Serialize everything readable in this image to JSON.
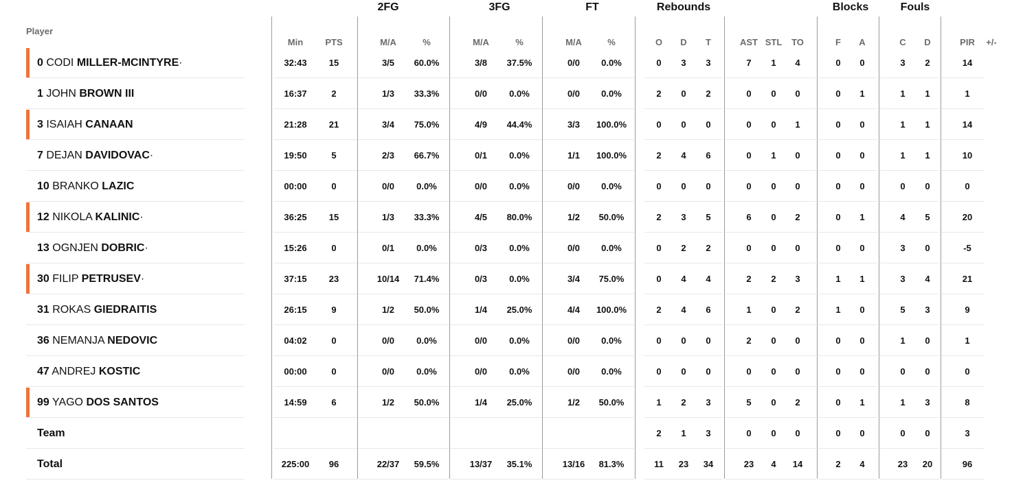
{
  "header": {
    "player": "Player",
    "groups": [
      "2FG",
      "3FG",
      "FT",
      "Rebounds",
      "Blocks",
      "Fouls"
    ],
    "columns": [
      "Min",
      "PTS",
      "M/A",
      "%",
      "M/A",
      "%",
      "M/A",
      "%",
      "O",
      "D",
      "T",
      "AST",
      "STL",
      "TO",
      "F",
      "A",
      "C",
      "D",
      "PIR",
      "+/-"
    ]
  },
  "players": [
    {
      "num": "0",
      "first": "CODI",
      "last": "MILLER-MCINTYRE",
      "dot": "·",
      "starter": true,
      "stats": [
        "32:43",
        "15",
        "3/5",
        "60.0%",
        "3/8",
        "37.5%",
        "0/0",
        "0.0%",
        "0",
        "3",
        "3",
        "7",
        "1",
        "4",
        "0",
        "0",
        "3",
        "2",
        "14",
        ""
      ]
    },
    {
      "num": "1",
      "first": "JOHN",
      "last": "BROWN III",
      "dot": "",
      "starter": false,
      "stats": [
        "16:37",
        "2",
        "1/3",
        "33.3%",
        "0/0",
        "0.0%",
        "0/0",
        "0.0%",
        "2",
        "0",
        "2",
        "0",
        "0",
        "0",
        "0",
        "1",
        "1",
        "1",
        "1",
        ""
      ]
    },
    {
      "num": "3",
      "first": "ISAIAH",
      "last": "CANAAN",
      "dot": "",
      "starter": true,
      "stats": [
        "21:28",
        "21",
        "3/4",
        "75.0%",
        "4/9",
        "44.4%",
        "3/3",
        "100.0%",
        "0",
        "0",
        "0",
        "0",
        "0",
        "1",
        "0",
        "0",
        "1",
        "1",
        "14",
        ""
      ]
    },
    {
      "num": "7",
      "first": "DEJAN",
      "last": "DAVIDOVAC",
      "dot": "·",
      "starter": false,
      "stats": [
        "19:50",
        "5",
        "2/3",
        "66.7%",
        "0/1",
        "0.0%",
        "1/1",
        "100.0%",
        "2",
        "4",
        "6",
        "0",
        "1",
        "0",
        "0",
        "0",
        "1",
        "1",
        "10",
        ""
      ]
    },
    {
      "num": "10",
      "first": "BRANKO",
      "last": "LAZIC",
      "dot": "",
      "starter": false,
      "stats": [
        "00:00",
        "0",
        "0/0",
        "0.0%",
        "0/0",
        "0.0%",
        "0/0",
        "0.0%",
        "0",
        "0",
        "0",
        "0",
        "0",
        "0",
        "0",
        "0",
        "0",
        "0",
        "0",
        ""
      ]
    },
    {
      "num": "12",
      "first": "NIKOLA",
      "last": "KALINIC",
      "dot": "·",
      "starter": true,
      "stats": [
        "36:25",
        "15",
        "1/3",
        "33.3%",
        "4/5",
        "80.0%",
        "1/2",
        "50.0%",
        "2",
        "3",
        "5",
        "6",
        "0",
        "2",
        "0",
        "1",
        "4",
        "5",
        "20",
        ""
      ]
    },
    {
      "num": "13",
      "first": "OGNJEN",
      "last": "DOBRIC",
      "dot": "·",
      "starter": false,
      "stats": [
        "15:26",
        "0",
        "0/1",
        "0.0%",
        "0/3",
        "0.0%",
        "0/0",
        "0.0%",
        "0",
        "2",
        "2",
        "0",
        "0",
        "0",
        "0",
        "0",
        "3",
        "0",
        "-5",
        ""
      ]
    },
    {
      "num": "30",
      "first": "FILIP",
      "last": "PETRUSEV",
      "dot": "·",
      "starter": true,
      "stats": [
        "37:15",
        "23",
        "10/14",
        "71.4%",
        "0/3",
        "0.0%",
        "3/4",
        "75.0%",
        "0",
        "4",
        "4",
        "2",
        "2",
        "3",
        "1",
        "1",
        "3",
        "4",
        "21",
        ""
      ]
    },
    {
      "num": "31",
      "first": "ROKAS",
      "last": "GIEDRAITIS",
      "dot": "",
      "starter": false,
      "stats": [
        "26:15",
        "9",
        "1/2",
        "50.0%",
        "1/4",
        "25.0%",
        "4/4",
        "100.0%",
        "2",
        "4",
        "6",
        "1",
        "0",
        "2",
        "1",
        "0",
        "5",
        "3",
        "9",
        ""
      ]
    },
    {
      "num": "36",
      "first": "NEMANJA",
      "last": "NEDOVIC",
      "dot": "",
      "starter": false,
      "stats": [
        "04:02",
        "0",
        "0/0",
        "0.0%",
        "0/0",
        "0.0%",
        "0/0",
        "0.0%",
        "0",
        "0",
        "0",
        "2",
        "0",
        "0",
        "0",
        "0",
        "1",
        "0",
        "1",
        ""
      ]
    },
    {
      "num": "47",
      "first": "ANDREJ",
      "last": "KOSTIC",
      "dot": "",
      "starter": false,
      "stats": [
        "00:00",
        "0",
        "0/0",
        "0.0%",
        "0/0",
        "0.0%",
        "0/0",
        "0.0%",
        "0",
        "0",
        "0",
        "0",
        "0",
        "0",
        "0",
        "0",
        "0",
        "0",
        "0",
        ""
      ]
    },
    {
      "num": "99",
      "first": "YAGO",
      "last": "DOS SANTOS",
      "dot": "",
      "starter": true,
      "stats": [
        "14:59",
        "6",
        "1/2",
        "50.0%",
        "1/4",
        "25.0%",
        "1/2",
        "50.0%",
        "1",
        "2",
        "3",
        "5",
        "0",
        "2",
        "0",
        "1",
        "1",
        "3",
        "8",
        ""
      ]
    }
  ],
  "team": {
    "label": "Team",
    "stats": [
      "",
      "",
      "",
      "",
      "",
      "",
      "",
      "",
      "2",
      "1",
      "3",
      "0",
      "0",
      "0",
      "0",
      "0",
      "0",
      "0",
      "3",
      ""
    ]
  },
  "total": {
    "label": "Total",
    "stats": [
      "225:00",
      "96",
      "22/37",
      "59.5%",
      "13/37",
      "35.1%",
      "13/16",
      "81.3%",
      "11",
      "23",
      "34",
      "23",
      "4",
      "14",
      "2",
      "4",
      "23",
      "20",
      "96",
      ""
    ]
  },
  "colors": {
    "starter_bar": "#f0733a",
    "divider": "#9a9a9a",
    "row_line": "#e7e7e7",
    "header_text": "#6b6b6b"
  }
}
